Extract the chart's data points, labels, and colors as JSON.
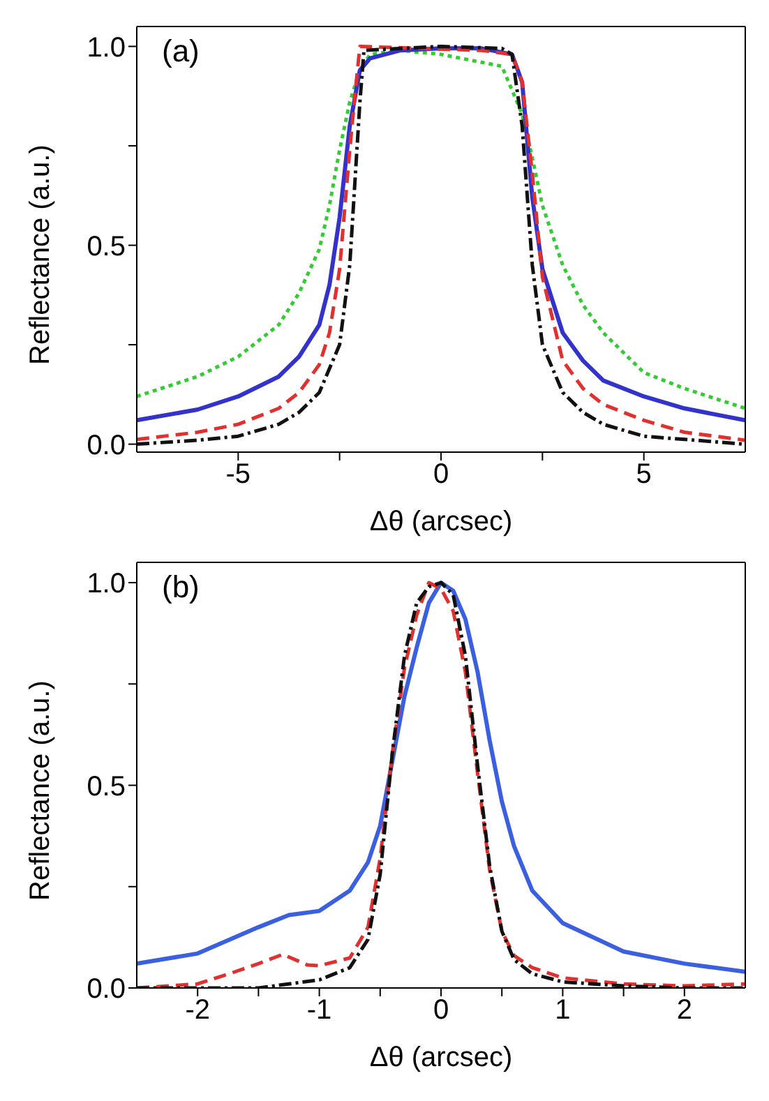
{
  "chart_data": [
    {
      "type": "line",
      "xlabel": "Δθ (arcsec)",
      "ylabel": "Reflectance (a.u.)",
      "annotations": [
        "(a)"
      ],
      "xlim": [
        -7.5,
        7.5
      ],
      "ylim": [
        -0.02,
        1.05
      ],
      "xticks": [
        -5,
        {
          "value": -2.5,
          "label": null
        },
        0,
        {
          "value": 2.5,
          "label": null
        },
        5
      ],
      "yticks": [
        {
          "value": 0,
          "label": "0.0"
        },
        {
          "value": 0.25,
          "label": null
        },
        0.5,
        {
          "value": 0.75,
          "label": null
        },
        {
          "value": 1,
          "label": "1.0"
        }
      ],
      "grid": false,
      "legend": false,
      "marker": "none",
      "series": [
        {
          "color": "#33cc33",
          "line_style": "dotted",
          "x": [
            -7.5,
            -6,
            -5,
            -4,
            -3.5,
            -3,
            -2.75,
            -2.5,
            -2.25,
            -2,
            -1.75,
            -1,
            0,
            1,
            1.5,
            1.75,
            2,
            2.25,
            2.5,
            3,
            3.5,
            4,
            5,
            6,
            7.5
          ],
          "values": [
            0.12,
            0.17,
            0.22,
            0.3,
            0.38,
            0.49,
            0.6,
            0.74,
            0.86,
            0.94,
            0.98,
            0.99,
            0.98,
            0.96,
            0.95,
            0.89,
            0.83,
            0.72,
            0.6,
            0.45,
            0.35,
            0.28,
            0.18,
            0.14,
            0.09
          ]
        },
        {
          "color": "#3333cc",
          "line_style": "solid",
          "x": [
            -7.5,
            -6,
            -5,
            -4,
            -3.5,
            -3,
            -2.75,
            -2.5,
            -2.25,
            -2,
            -1.75,
            -1,
            0,
            1,
            1.75,
            2,
            2.25,
            2.5,
            3,
            3.5,
            4,
            5,
            6,
            7.5
          ],
          "values": [
            0.06,
            0.087,
            0.12,
            0.17,
            0.22,
            0.3,
            0.4,
            0.57,
            0.8,
            0.94,
            0.97,
            0.99,
            0.995,
            0.995,
            0.98,
            0.91,
            0.62,
            0.44,
            0.28,
            0.21,
            0.16,
            0.12,
            0.09,
            0.06
          ]
        },
        {
          "color": "#e03030",
          "line_style": "dashed",
          "x": [
            -7.5,
            -6,
            -5,
            -4,
            -3.5,
            -3,
            -2.75,
            -2.5,
            -2.25,
            -2.1,
            -2,
            1,
            1.75,
            2,
            2.25,
            2.5,
            3,
            3.5,
            4,
            5,
            6,
            7.5
          ],
          "values": [
            0.012,
            0.03,
            0.05,
            0.09,
            0.13,
            0.2,
            0.28,
            0.44,
            0.74,
            0.9,
            1.0,
            0.99,
            0.98,
            0.91,
            0.68,
            0.42,
            0.21,
            0.14,
            0.1,
            0.06,
            0.03,
            0.01
          ]
        },
        {
          "color": "#111111",
          "line_style": "dashdot",
          "x": [
            -7.5,
            -6,
            -5,
            -4,
            -3.5,
            -3,
            -2.5,
            -2.25,
            -2,
            -1.9,
            0,
            1.5,
            1.75,
            2,
            2.25,
            2.5,
            3,
            3.5,
            4,
            5,
            7.5
          ],
          "values": [
            0.0,
            0.01,
            0.02,
            0.05,
            0.08,
            0.13,
            0.25,
            0.45,
            0.86,
            0.99,
            1.0,
            0.995,
            0.98,
            0.8,
            0.45,
            0.25,
            0.13,
            0.08,
            0.05,
            0.02,
            0.0
          ]
        }
      ]
    },
    {
      "type": "line",
      "xlabel": "Δθ (arcsec)",
      "ylabel": "Reflectance (a.u.)",
      "annotations": [
        "(b)"
      ],
      "xlim": [
        -2.5,
        2.5
      ],
      "ylim": [
        0,
        1.05
      ],
      "xticks": [
        -2,
        {
          "value": -1.5,
          "label": null
        },
        -1,
        {
          "value": -0.5,
          "label": null
        },
        0,
        {
          "value": 0.5,
          "label": null
        },
        1,
        {
          "value": 1.5,
          "label": null
        },
        2
      ],
      "yticks": [
        {
          "value": 0,
          "label": "0.0"
        },
        {
          "value": 0.25,
          "label": null
        },
        0.5,
        {
          "value": 0.75,
          "label": null
        },
        {
          "value": 1,
          "label": "1.0"
        }
      ],
      "grid": false,
      "legend": false,
      "marker": "none",
      "series": [
        {
          "color": "#3a5fe0",
          "line_style": "solid",
          "x": [
            -2.5,
            -2,
            -1.5,
            -1.25,
            -1,
            -0.75,
            -0.6,
            -0.5,
            -0.4,
            -0.3,
            -0.2,
            -0.1,
            0,
            0.1,
            0.2,
            0.3,
            0.4,
            0.5,
            0.6,
            0.75,
            1,
            1.5,
            2,
            2.5
          ],
          "values": [
            0.06,
            0.085,
            0.15,
            0.18,
            0.19,
            0.24,
            0.31,
            0.4,
            0.56,
            0.72,
            0.84,
            0.95,
            1.0,
            0.98,
            0.91,
            0.78,
            0.61,
            0.46,
            0.35,
            0.24,
            0.16,
            0.09,
            0.06,
            0.04
          ]
        },
        {
          "color": "#e03030",
          "line_style": "dashed",
          "x": [
            -2.5,
            -2,
            -1.75,
            -1.5,
            -1.3,
            -1.1,
            -1,
            -0.75,
            -0.6,
            -0.5,
            -0.4,
            -0.3,
            -0.2,
            -0.1,
            0,
            0.1,
            0.2,
            0.3,
            0.4,
            0.5,
            0.6,
            0.75,
            1,
            1.5,
            2,
            2.5
          ],
          "values": [
            0.0,
            0.01,
            0.034,
            0.06,
            0.083,
            0.057,
            0.055,
            0.074,
            0.15,
            0.32,
            0.58,
            0.79,
            0.92,
            1.0,
            0.985,
            0.93,
            0.78,
            0.53,
            0.29,
            0.14,
            0.08,
            0.05,
            0.025,
            0.01,
            0.005,
            0.01
          ]
        },
        {
          "color": "#111111",
          "line_style": "dashdot",
          "x": [
            -2.5,
            -1.5,
            -1,
            -0.75,
            -0.6,
            -0.5,
            -0.4,
            -0.3,
            -0.2,
            -0.1,
            0,
            0.1,
            0.2,
            0.3,
            0.4,
            0.5,
            0.6,
            0.75,
            1,
            1.5,
            2,
            2.5
          ],
          "values": [
            0.0,
            0.0,
            0.02,
            0.05,
            0.12,
            0.28,
            0.58,
            0.82,
            0.95,
            0.99,
            1.0,
            0.97,
            0.82,
            0.55,
            0.3,
            0.14,
            0.07,
            0.035,
            0.015,
            0.005,
            0.0,
            0.0
          ]
        }
      ]
    }
  ]
}
